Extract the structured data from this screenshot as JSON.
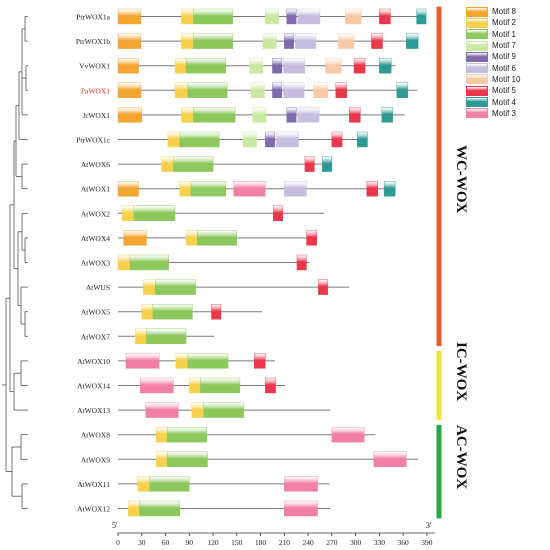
{
  "figure": {
    "axis": {
      "start_label": "5'",
      "end_label": "3'",
      "ticks": [
        0,
        30,
        60,
        90,
        120,
        150,
        180,
        210,
        240,
        270,
        300,
        330,
        360,
        390
      ],
      "range": [
        0,
        400
      ]
    },
    "highlight_color": "#d22f1e",
    "motif_colors": {
      "Motif 8": "#f2a531",
      "Motif 2": "#f7d04d",
      "Motif 1": "#8dc85c",
      "Motif 7": "#c9e8a3",
      "Motif 9": "#7f6aad",
      "Motif 6": "#c6bedf",
      "Motif 10": "#f8c9a7",
      "Motif 5": "#e9384c",
      "Motif 4": "#2e9a94",
      "Motif 3": "#f17fa6"
    },
    "legend": [
      "Motif 8",
      "Motif 2",
      "Motif 1",
      "Motif 7",
      "Motif 9",
      "Motif 6",
      "Motif 10",
      "Motif 5",
      "Motif 4",
      "Motif 3"
    ],
    "groups": [
      {
        "label": "WC-WOX",
        "color": "#e55f33"
      },
      {
        "label": "IC-WOX",
        "color": "#ede33c"
      },
      {
        "label": "AC-WOX",
        "color": "#28a844"
      }
    ],
    "genes": [
      {
        "name": "PtrWOX1a",
        "length": 389,
        "highlight": false,
        "motifs": [
          {
            "m": "Motif 8",
            "s": 0,
            "e": 29
          },
          {
            "m": "Motif 2",
            "s": 80,
            "e": 95
          },
          {
            "m": "Motif 1",
            "s": 95,
            "e": 145
          },
          {
            "m": "Motif 7",
            "s": 186,
            "e": 203
          },
          {
            "m": "Motif 9",
            "s": 213,
            "e": 225
          },
          {
            "m": "Motif 6",
            "s": 227,
            "e": 255
          },
          {
            "m": "Motif 10",
            "s": 287,
            "e": 307
          },
          {
            "m": "Motif 5",
            "s": 330,
            "e": 344
          },
          {
            "m": "Motif 4",
            "s": 377,
            "e": 389
          }
        ]
      },
      {
        "name": "PtrWOX1b",
        "length": 379,
        "highlight": false,
        "motifs": [
          {
            "m": "Motif 8",
            "s": 0,
            "e": 29
          },
          {
            "m": "Motif 2",
            "s": 80,
            "e": 95
          },
          {
            "m": "Motif 1",
            "s": 95,
            "e": 145
          },
          {
            "m": "Motif 7",
            "s": 183,
            "e": 200
          },
          {
            "m": "Motif 9",
            "s": 210,
            "e": 222
          },
          {
            "m": "Motif 6",
            "s": 224,
            "e": 250
          },
          {
            "m": "Motif 10",
            "s": 278,
            "e": 298
          },
          {
            "m": "Motif 5",
            "s": 320,
            "e": 334
          },
          {
            "m": "Motif 4",
            "s": 364,
            "e": 379
          }
        ]
      },
      {
        "name": "VvWOX1",
        "length": 350,
        "highlight": false,
        "motifs": [
          {
            "m": "Motif 8",
            "s": 0,
            "e": 26
          },
          {
            "m": "Motif 2",
            "s": 72,
            "e": 86
          },
          {
            "m": "Motif 1",
            "s": 86,
            "e": 136
          },
          {
            "m": "Motif 7",
            "s": 166,
            "e": 183
          },
          {
            "m": "Motif 9",
            "s": 195,
            "e": 207
          },
          {
            "m": "Motif 6",
            "s": 209,
            "e": 236
          },
          {
            "m": "Motif 10",
            "s": 262,
            "e": 282
          },
          {
            "m": "Motif 5",
            "s": 298,
            "e": 312
          },
          {
            "m": "Motif 4",
            "s": 330,
            "e": 345
          }
        ]
      },
      {
        "name": "PaWOX1",
        "length": 378,
        "highlight": true,
        "motifs": [
          {
            "m": "Motif 8",
            "s": 0,
            "e": 29
          },
          {
            "m": "Motif 2",
            "s": 72,
            "e": 88
          },
          {
            "m": "Motif 1",
            "s": 88,
            "e": 138
          },
          {
            "m": "Motif 7",
            "s": 168,
            "e": 185
          },
          {
            "m": "Motif 9",
            "s": 195,
            "e": 207
          },
          {
            "m": "Motif 6",
            "s": 209,
            "e": 235
          },
          {
            "m": "Motif 10",
            "s": 247,
            "e": 265
          },
          {
            "m": "Motif 5",
            "s": 275,
            "e": 289
          },
          {
            "m": "Motif 4",
            "s": 352,
            "e": 366
          }
        ]
      },
      {
        "name": "JrWOX1",
        "length": 362,
        "highlight": false,
        "motifs": [
          {
            "m": "Motif 8",
            "s": 0,
            "e": 30
          },
          {
            "m": "Motif 2",
            "s": 80,
            "e": 95
          },
          {
            "m": "Motif 1",
            "s": 95,
            "e": 148
          },
          {
            "m": "Motif 7",
            "s": 170,
            "e": 187
          },
          {
            "m": "Motif 9",
            "s": 213,
            "e": 225
          },
          {
            "m": "Motif 6",
            "s": 227,
            "e": 254
          },
          {
            "m": "Motif 5",
            "s": 292,
            "e": 306
          },
          {
            "m": "Motif 4",
            "s": 333,
            "e": 347
          }
        ]
      },
      {
        "name": "PtrWOX1c",
        "length": 315,
        "highlight": false,
        "motifs": [
          {
            "m": "Motif 2",
            "s": 63,
            "e": 78
          },
          {
            "m": "Motif 1",
            "s": 78,
            "e": 128
          },
          {
            "m": "Motif 7",
            "s": 158,
            "e": 175
          },
          {
            "m": "Motif 9",
            "s": 186,
            "e": 198
          },
          {
            "m": "Motif 6",
            "s": 200,
            "e": 228
          },
          {
            "m": "Motif 5",
            "s": 270,
            "e": 283
          },
          {
            "m": "Motif 4",
            "s": 302,
            "e": 315
          }
        ]
      },
      {
        "name": "AtWOX6",
        "length": 270,
        "highlight": false,
        "motifs": [
          {
            "m": "Motif 2",
            "s": 55,
            "e": 70
          },
          {
            "m": "Motif 1",
            "s": 70,
            "e": 120
          },
          {
            "m": "Motif 5",
            "s": 236,
            "e": 248
          },
          {
            "m": "Motif 4",
            "s": 258,
            "e": 270
          }
        ]
      },
      {
        "name": "AtWOX1",
        "length": 350,
        "highlight": false,
        "motifs": [
          {
            "m": "Motif 8",
            "s": 0,
            "e": 26
          },
          {
            "m": "Motif 2",
            "s": 78,
            "e": 92
          },
          {
            "m": "Motif 1",
            "s": 92,
            "e": 136
          },
          {
            "m": "Motif 3",
            "s": 146,
            "e": 186
          },
          {
            "m": "Motif 6",
            "s": 210,
            "e": 238
          },
          {
            "m": "Motif 5",
            "s": 314,
            "e": 328
          },
          {
            "m": "Motif 4",
            "s": 336,
            "e": 350
          }
        ]
      },
      {
        "name": "AtWOX2",
        "length": 260,
        "highlight": false,
        "motifs": [
          {
            "m": "Motif 2",
            "s": 5,
            "e": 20
          },
          {
            "m": "Motif 1",
            "s": 20,
            "e": 72
          },
          {
            "m": "Motif 5",
            "s": 196,
            "e": 208
          }
        ]
      },
      {
        "name": "AtWOX4",
        "length": 251,
        "highlight": false,
        "motifs": [
          {
            "m": "Motif 8",
            "s": 7,
            "e": 36
          },
          {
            "m": "Motif 2",
            "s": 86,
            "e": 100
          },
          {
            "m": "Motif 1",
            "s": 100,
            "e": 150
          },
          {
            "m": "Motif 5",
            "s": 238,
            "e": 251
          }
        ]
      },
      {
        "name": "AtWOX3",
        "length": 242,
        "highlight": false,
        "motifs": [
          {
            "m": "Motif 2",
            "s": 0,
            "e": 15
          },
          {
            "m": "Motif 1",
            "s": 15,
            "e": 64
          },
          {
            "m": "Motif 5",
            "s": 226,
            "e": 238
          }
        ]
      },
      {
        "name": "AtWUS",
        "length": 292,
        "highlight": false,
        "motifs": [
          {
            "m": "Motif 2",
            "s": 32,
            "e": 47
          },
          {
            "m": "Motif 1",
            "s": 47,
            "e": 98
          },
          {
            "m": "Motif 5",
            "s": 253,
            "e": 265
          }
        ]
      },
      {
        "name": "AtWOX5",
        "length": 182,
        "highlight": false,
        "motifs": [
          {
            "m": "Motif 2",
            "s": 30,
            "e": 44
          },
          {
            "m": "Motif 1",
            "s": 44,
            "e": 94
          },
          {
            "m": "Motif 5",
            "s": 118,
            "e": 130
          }
        ]
      },
      {
        "name": "AtWOX7",
        "length": 122,
        "highlight": false,
        "motifs": [
          {
            "m": "Motif 2",
            "s": 22,
            "e": 36
          },
          {
            "m": "Motif 1",
            "s": 36,
            "e": 86
          }
        ]
      },
      {
        "name": "AtWOX10",
        "length": 198,
        "highlight": false,
        "motifs": [
          {
            "m": "Motif 3",
            "s": 10,
            "e": 52
          },
          {
            "m": "Motif 2",
            "s": 73,
            "e": 88
          },
          {
            "m": "Motif 1",
            "s": 88,
            "e": 139
          },
          {
            "m": "Motif 5",
            "s": 172,
            "e": 186
          }
        ]
      },
      {
        "name": "AtWOX14",
        "length": 211,
        "highlight": false,
        "motifs": [
          {
            "m": "Motif 3",
            "s": 28,
            "e": 70
          },
          {
            "m": "Motif 2",
            "s": 90,
            "e": 104
          },
          {
            "m": "Motif 1",
            "s": 104,
            "e": 154
          },
          {
            "m": "Motif 5",
            "s": 186,
            "e": 199
          }
        ]
      },
      {
        "name": "AtWOX13",
        "length": 268,
        "highlight": false,
        "motifs": [
          {
            "m": "Motif 3",
            "s": 35,
            "e": 76
          },
          {
            "m": "Motif 2",
            "s": 93,
            "e": 108
          },
          {
            "m": "Motif 1",
            "s": 108,
            "e": 159
          }
        ]
      },
      {
        "name": "AtWOX8",
        "length": 325,
        "highlight": false,
        "motifs": [
          {
            "m": "Motif 2",
            "s": 48,
            "e": 62
          },
          {
            "m": "Motif 1",
            "s": 62,
            "e": 112
          },
          {
            "m": "Motif 3",
            "s": 270,
            "e": 311
          }
        ]
      },
      {
        "name": "AtWOX9",
        "length": 379,
        "highlight": false,
        "motifs": [
          {
            "m": "Motif 2",
            "s": 48,
            "e": 62
          },
          {
            "m": "Motif 1",
            "s": 62,
            "e": 113
          },
          {
            "m": "Motif 3",
            "s": 323,
            "e": 364
          }
        ]
      },
      {
        "name": "AtWOX11",
        "length": 267,
        "highlight": false,
        "motifs": [
          {
            "m": "Motif 2",
            "s": 25,
            "e": 40
          },
          {
            "m": "Motif 1",
            "s": 40,
            "e": 90
          },
          {
            "m": "Motif 3",
            "s": 210,
            "e": 252
          }
        ]
      },
      {
        "name": "AtWOX12",
        "length": 268,
        "highlight": false,
        "motifs": [
          {
            "m": "Motif 2",
            "s": 13,
            "e": 27
          },
          {
            "m": "Motif 1",
            "s": 27,
            "e": 78
          },
          {
            "m": "Motif 3",
            "s": 210,
            "e": 252
          }
        ]
      }
    ]
  }
}
